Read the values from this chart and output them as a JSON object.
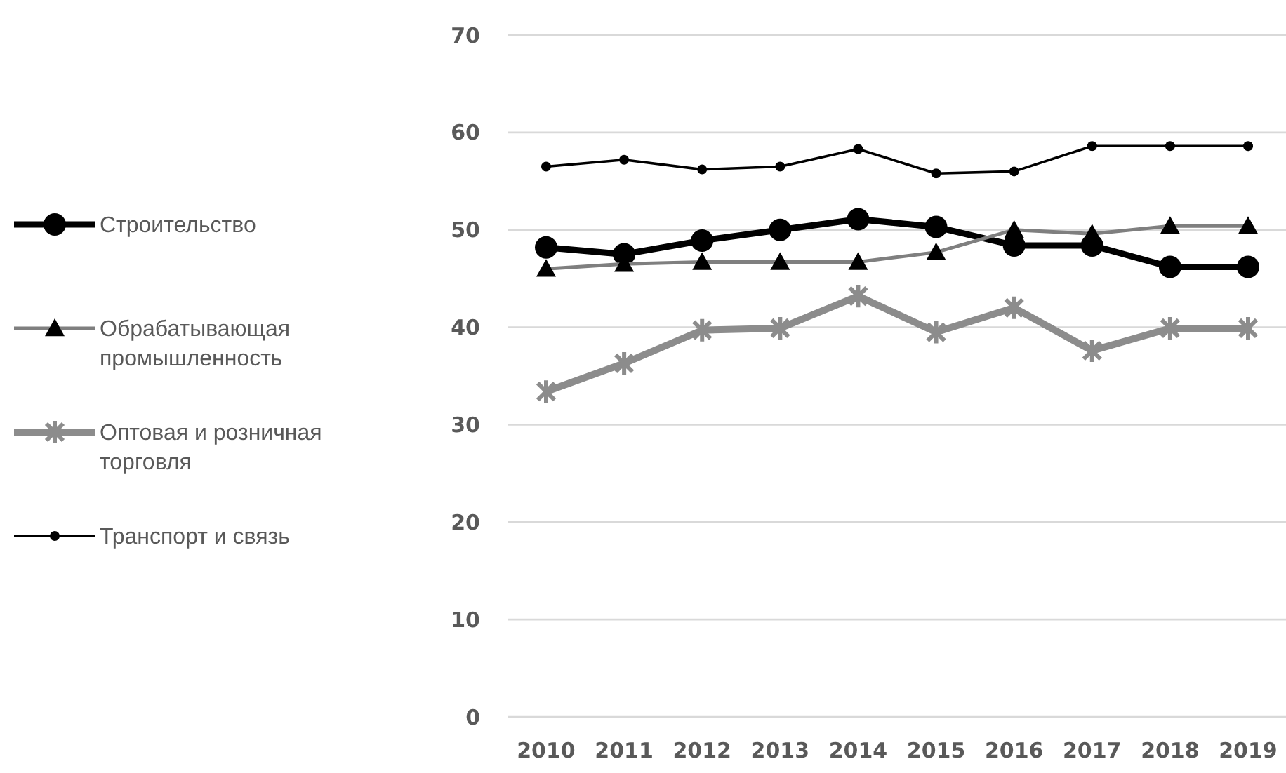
{
  "chart_data": {
    "type": "line",
    "categories": [
      "2010",
      "2011",
      "2012",
      "2013",
      "2014",
      "2015",
      "2016",
      "2017",
      "2018",
      "2019"
    ],
    "ylim": [
      0,
      70
    ],
    "yticks": [
      0,
      10,
      20,
      30,
      40,
      50,
      60,
      70
    ],
    "grid": "y",
    "legend": "left",
    "series": [
      {
        "name": "Строительство",
        "color": "#000000",
        "marker": "circle",
        "values": [
          48.2,
          47.5,
          48.9,
          50.0,
          51.1,
          50.3,
          48.4,
          48.4,
          46.2,
          46.2
        ]
      },
      {
        "name": "Обрабатывающая промышленность",
        "color": "#7f7f7f",
        "marker": "triangle",
        "values": [
          46.0,
          46.5,
          46.7,
          46.7,
          46.7,
          47.7,
          50.0,
          49.6,
          50.4,
          50.4
        ]
      },
      {
        "name": "Оптовая и розничная торговля",
        "color": "#8c8c8c",
        "marker": "cross",
        "values": [
          33.4,
          36.3,
          39.7,
          39.9,
          43.2,
          39.5,
          42.0,
          37.6,
          39.9,
          39.9
        ]
      },
      {
        "name": "Транспорт и связь",
        "color": "#000000",
        "marker": "circle",
        "values": [
          56.5,
          57.2,
          56.2,
          56.5,
          58.3,
          55.8,
          56.0,
          58.6,
          58.6,
          58.6
        ]
      }
    ]
  }
}
